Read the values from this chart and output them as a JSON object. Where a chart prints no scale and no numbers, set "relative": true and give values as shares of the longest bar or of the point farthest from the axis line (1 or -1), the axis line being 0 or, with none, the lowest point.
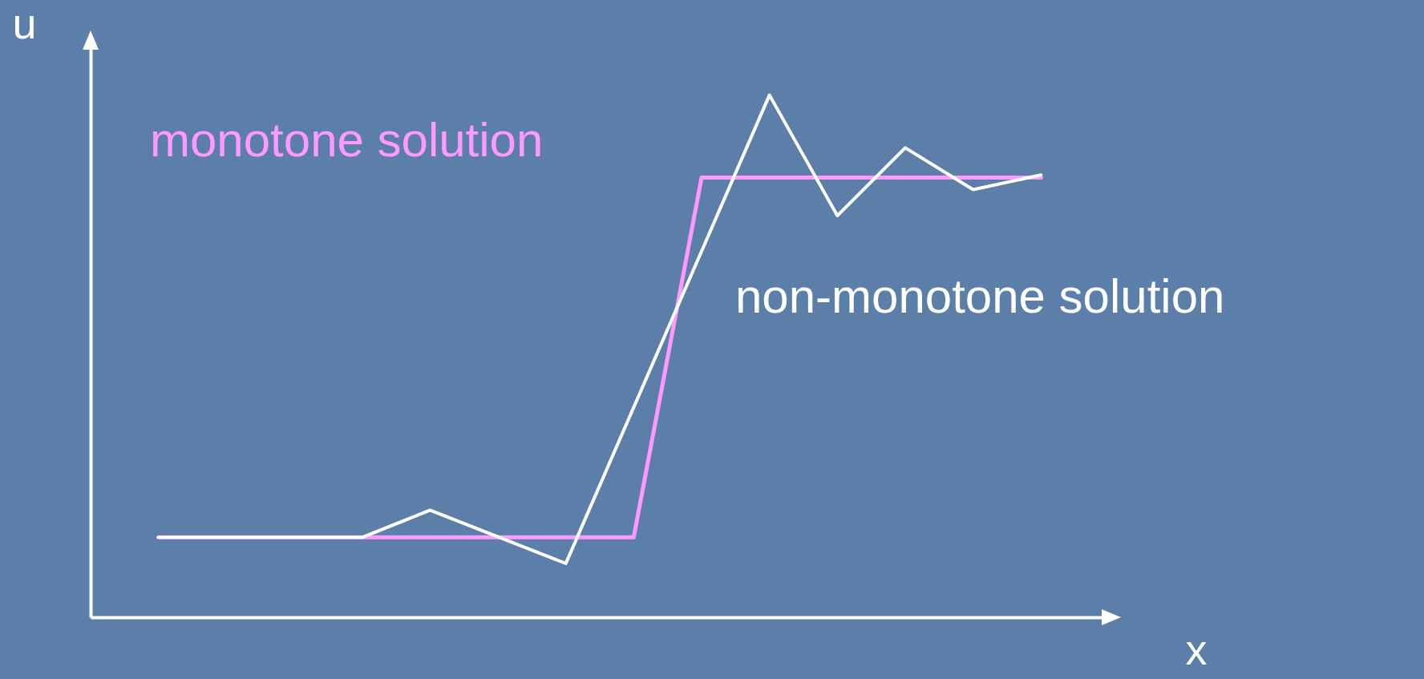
{
  "chart_data": {
    "type": "line",
    "relative": true,
    "xlabel": "x",
    "ylabel": "u",
    "categories": [
      null,
      null,
      null,
      null,
      null,
      null,
      null,
      null,
      null,
      null,
      null,
      null,
      null,
      null
    ],
    "series": [
      {
        "name": "monotone solution",
        "color": "#ff99ff",
        "values": [
          0.153,
          null,
          null,
          null,
          null,
          null,
          null,
          0.153,
          0.842,
          null,
          null,
          null,
          null,
          0.842
        ]
      },
      {
        "name": "non-monotone solution",
        "color": "#ffffff",
        "values": [
          0.153,
          null,
          null,
          0.153,
          0.205,
          null,
          0.103,
          null,
          null,
          1,
          0.769,
          0.899,
          0.819,
          0.847
        ]
      }
    ],
    "marker": "none",
    "line_style": "solid"
  }
}
